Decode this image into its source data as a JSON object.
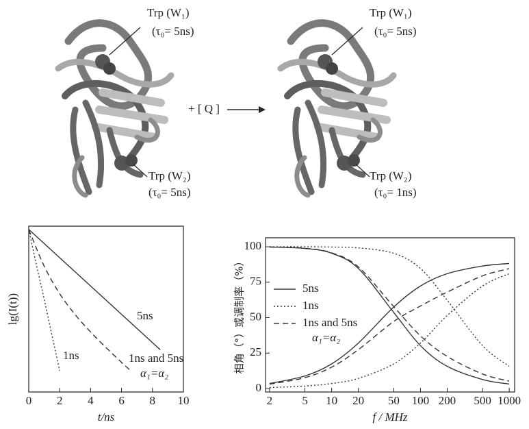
{
  "figure": {
    "labels": [
      "Trp (W₁)",
      "(τ₀= 5ns)",
      "Trp (W₂)",
      "(τ₀= 5ns)",
      "+ [ Q ]",
      "Trp (W₁)",
      "(τ₀= 5ns)",
      "Trp (W₂)",
      "(τ₀= 1ns)"
    ]
  },
  "chart_data": [
    {
      "type": "line",
      "x_label": "t/ns",
      "y_label": "lg(I(t))",
      "xlim": [
        0,
        10
      ],
      "xticks": [
        0,
        2,
        4,
        6,
        8,
        10
      ],
      "ylim": [
        -1,
        0.02
      ],
      "annotation": "α₁=α₂",
      "series": [
        {
          "name": "5ns",
          "color": "#333333",
          "line_style": "solid",
          "x": [
            0,
            8.5
          ],
          "values": [
            0,
            -0.74
          ]
        },
        {
          "name": "1ns",
          "color": "#333333",
          "line_style": "dotted",
          "x": [
            0,
            0.5,
            1,
            1.5,
            2
          ],
          "values": [
            0,
            -0.22,
            -0.43,
            -0.65,
            -0.87
          ]
        },
        {
          "name": "1ns and 5ns",
          "color": "#333333",
          "line_style": "dashed",
          "x": [
            0,
            1,
            2,
            3,
            4,
            5,
            6,
            6.6
          ],
          "values": [
            0,
            -0.227,
            -0.395,
            -0.524,
            -0.631,
            -0.727,
            -0.818,
            -0.87
          ]
        }
      ]
    },
    {
      "type": "line",
      "x_label": "f / MHz",
      "y_label": "相角（°）或调制率（%）",
      "log_x": true,
      "xlim": [
        1.8,
        1150
      ],
      "xticks": [
        2,
        5,
        10,
        20,
        50,
        100,
        200,
        500,
        1000
      ],
      "ylim": [
        -2.4,
        106.3
      ],
      "yticks": [
        0,
        25,
        50,
        75,
        100
      ],
      "annotation": "α₁=α₂",
      "x": [
        2,
        5,
        10,
        20,
        50,
        100,
        200,
        500,
        1000
      ],
      "series": [
        {
          "name": "5ns",
          "color": "#333333",
          "line_style": "solid",
          "phase": [
            3.6,
            8.9,
            17.4,
            32.1,
            57.5,
            72.3,
            81.0,
            86.4,
            88.2
          ],
          "modulation": [
            99.8,
            98.8,
            95.4,
            84.7,
            53.7,
            30.3,
            15.7,
            6.4,
            3.2
          ]
        },
        {
          "name": "1ns",
          "color": "#333333",
          "line_style": "dotted",
          "phase": [
            0.7,
            1.8,
            3.6,
            7.2,
            17.4,
            32.1,
            51.5,
            72.3,
            81.0
          ],
          "modulation": [
            100,
            100,
            99.8,
            99.2,
            95.4,
            84.7,
            62.3,
            30.3,
            15.7
          ]
        },
        {
          "name": "1ns and 5ns",
          "color": "#333333",
          "line_style": "dashed",
          "phase": [
            3.1,
            7.7,
            15.1,
            27.5,
            47.3,
            58.2,
            68.0,
            79.5,
            84.6
          ],
          "modulation": [
            99.8,
            98.9,
            95.7,
            85.8,
            57.8,
            37.2,
            22.7,
            10.3,
            5.3
          ]
        }
      ]
    }
  ]
}
